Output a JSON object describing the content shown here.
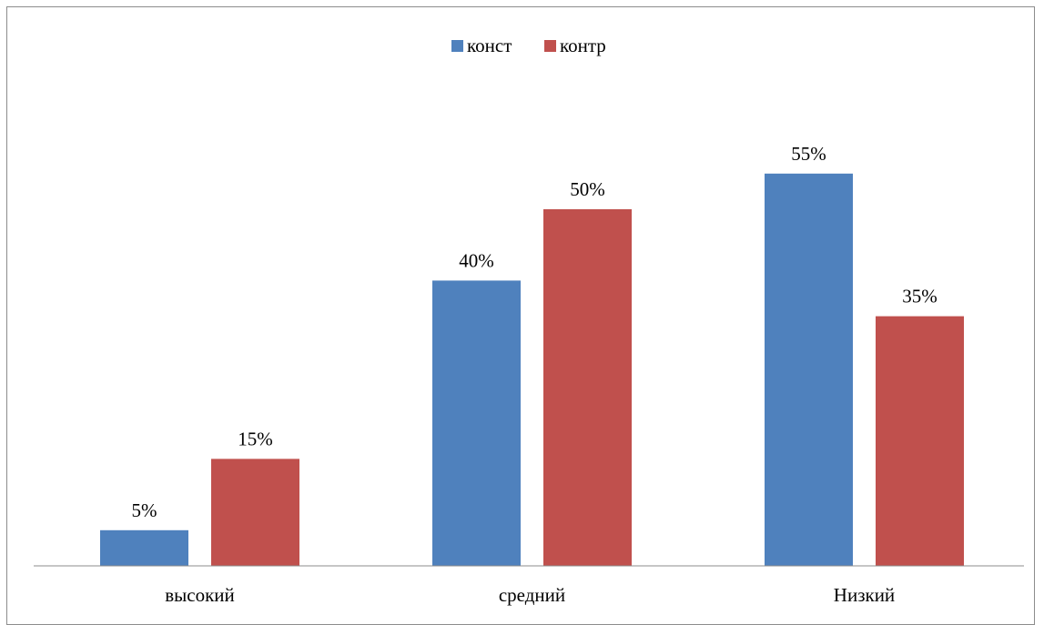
{
  "chart_data": {
    "type": "bar",
    "title": "",
    "xlabel": "",
    "ylabel": "",
    "categories": [
      "высокий",
      "средний",
      "Низкий"
    ],
    "series": [
      {
        "name": "конст",
        "color": "#4f81bd",
        "values": [
          5,
          40,
          55
        ],
        "labels": [
          "5%",
          "40%",
          "55%"
        ]
      },
      {
        "name": "контр",
        "color": "#c0504d",
        "values": [
          15,
          50,
          35
        ],
        "labels": [
          "15%",
          "50%",
          "35%"
        ]
      }
    ],
    "ylim": [
      0,
      60
    ],
    "grid": false,
    "legend_position": "top-center"
  }
}
